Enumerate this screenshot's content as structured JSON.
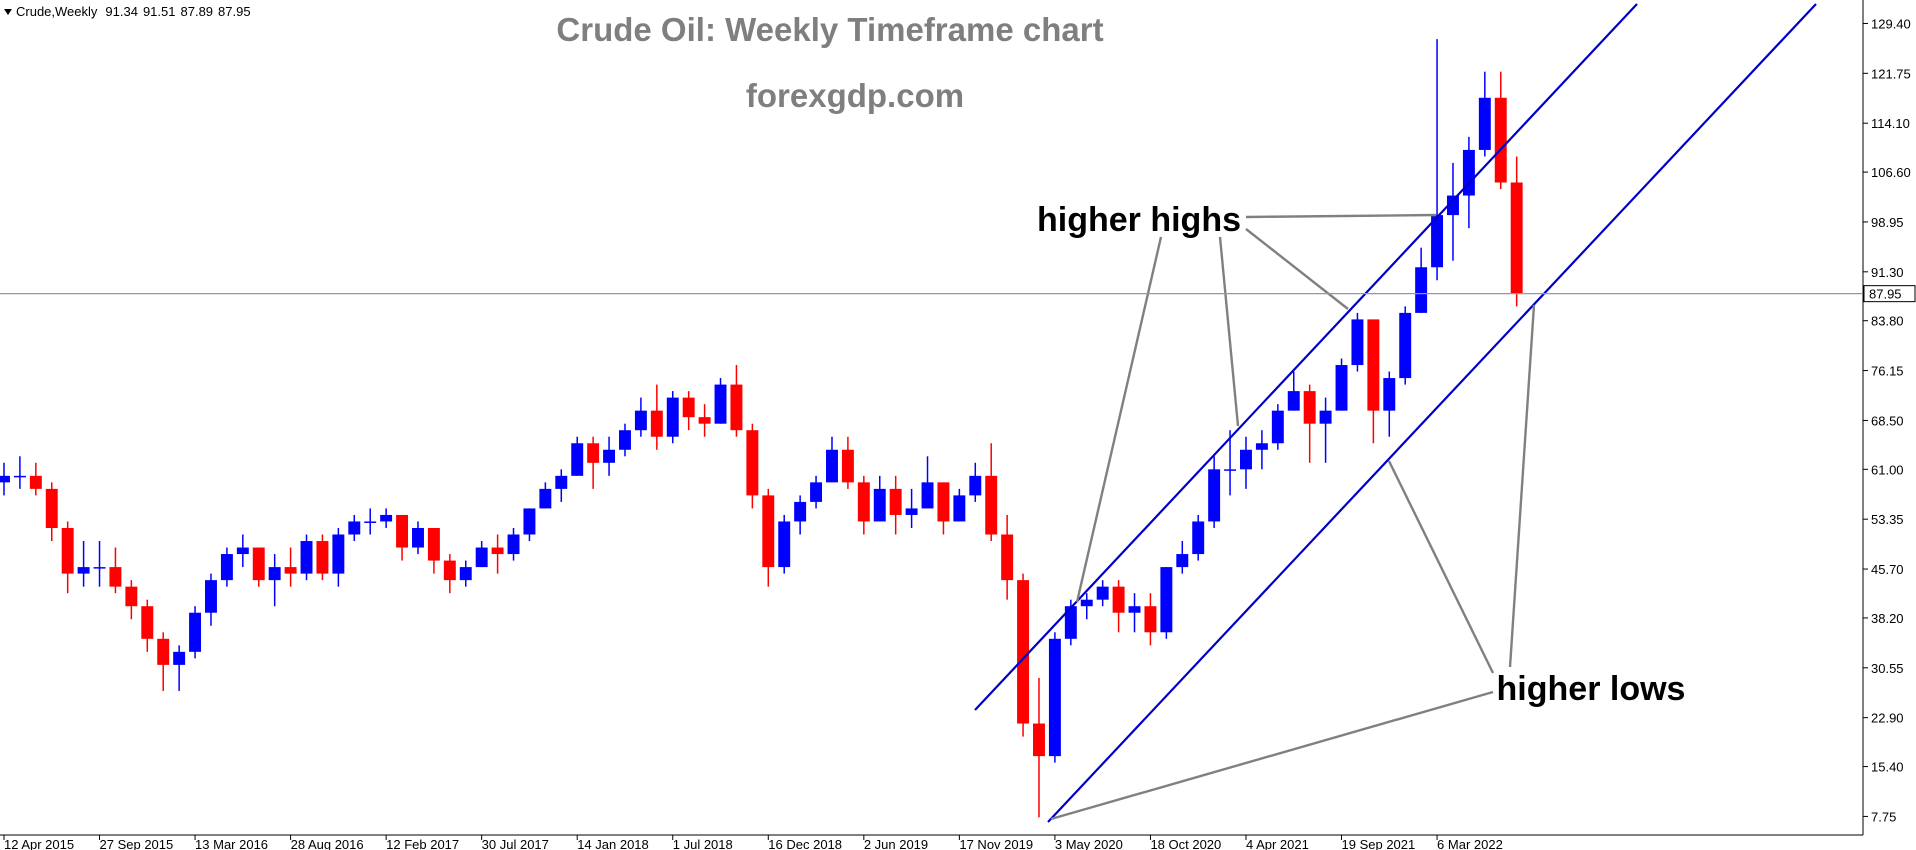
{
  "header": {
    "symbol": "Crude,Weekly",
    "open": 91.34,
    "high": 91.51,
    "low": 87.89,
    "close": 87.95
  },
  "chart_data": {
    "type": "candlestick",
    "title": "Crude Oil: Weekly Timeframe chart",
    "subtitle": "forexgdp.com",
    "annotations": [
      "higher highs",
      "higher lows"
    ],
    "up_color": "#0000ff",
    "down_color": "#ff0000",
    "current_price": 87.95,
    "xlim": [
      "5 Apr 2015",
      "24 Mar 2024"
    ],
    "xticks": [
      "12 Apr 2015",
      "27 Sep 2015",
      "13 Mar 2016",
      "28 Aug 2016",
      "12 Feb 2017",
      "30 Jul 2017",
      "14 Jan 2018",
      "1 Jul 2018",
      "16 Dec 2018",
      "2 Jun 2019",
      "17 Nov 2019",
      "3 May 2020",
      "18 Oct 2020",
      "4 Apr 2021",
      "19 Sep 2021",
      "6 Mar 2022"
    ],
    "ylim": [
      4.9,
      133.0
    ],
    "yticks": [
      7.75,
      {
        "value": 15.4,
        "label": "15.40"
      },
      {
        "value": 22.9,
        "label": "22.90"
      },
      30.55,
      {
        "value": 38.2,
        "label": "38.20"
      },
      {
        "value": 45.7,
        "label": "45.70"
      },
      53.35,
      {
        "value": 61,
        "label": "61.00"
      },
      {
        "value": 68.5,
        "label": "68.50"
      },
      76.15,
      {
        "value": 83.8,
        "label": "83.80"
      },
      {
        "value": 91.3,
        "label": "91.30"
      },
      98.95,
      {
        "value": 106.6,
        "label": "106.60"
      },
      {
        "value": 114.1,
        "label": "114.10"
      },
      121.75,
      {
        "value": 129.4,
        "label": "129.40"
      }
    ],
    "x": [
      "12 Apr 2015",
      "10 May 2015",
      "7 Jun 2015",
      "5 Jul 2015",
      "2 Aug 2015",
      "30 Aug 2015",
      "27 Sep 2015",
      "25 Oct 2015",
      "22 Nov 2015",
      "20 Dec 2015",
      "17 Jan 2016",
      "14 Feb 2016",
      "13 Mar 2016",
      "10 Apr 2016",
      "8 May 2016",
      "5 Jun 2016",
      "3 Jul 2016",
      "31 Jul 2016",
      "28 Aug 2016",
      "25 Sep 2016",
      "23 Oct 2016",
      "20 Nov 2016",
      "18 Dec 2016",
      "15 Jan 2017",
      "12 Feb 2017",
      "12 Mar 2017",
      "9 Apr 2017",
      "7 May 2017",
      "4 Jun 2017",
      "2 Jul 2017",
      "30 Jul 2017",
      "27 Aug 2017",
      "24 Sep 2017",
      "22 Oct 2017",
      "19 Nov 2017",
      "17 Dec 2017",
      "14 Jan 2018",
      "11 Feb 2018",
      "11 Mar 2018",
      "8 Apr 2018",
      "6 May 2018",
      "3 Jun 2018",
      "1 Jul 2018",
      "29 Jul 2018",
      "26 Aug 2018",
      "23 Sep 2018",
      "21 Oct 2018",
      "18 Nov 2018",
      "16 Dec 2018",
      "13 Jan 2019",
      "10 Feb 2019",
      "10 Mar 2019",
      "7 Apr 2019",
      "5 May 2019",
      "2 Jun 2019",
      "30 Jun 2019",
      "28 Jul 2019",
      "25 Aug 2019",
      "22 Sep 2019",
      "20 Oct 2019",
      "17 Nov 2019",
      "15 Dec 2019",
      "12 Jan 2020",
      "9 Feb 2020",
      "8 Mar 2020",
      "5 Apr 2020",
      "3 May 2020",
      "31 May 2020",
      "28 Jun 2020",
      "26 Jul 2020",
      "23 Aug 2020",
      "20 Sep 2020",
      "18 Oct 2020",
      "15 Nov 2020",
      "13 Dec 2020",
      "10 Jan 2021",
      "7 Feb 2021",
      "7 Mar 2021",
      "4 Apr 2021",
      "2 May 2021",
      "30 May 2021",
      "27 Jun 2021",
      "25 Jul 2021",
      "22 Aug 2021",
      "19 Sep 2021",
      "17 Oct 2021",
      "14 Nov 2021",
      "12 Dec 2021",
      "9 Jan 2022",
      "6 Feb 2022",
      "6 Mar 2022",
      "3 Apr 2022",
      "1 May 2022",
      "29 May 2022",
      "26 Jun 2022",
      "24 Jul 2022"
    ],
    "open": [
      59,
      60,
      60,
      58,
      52,
      45,
      46,
      46,
      43,
      40,
      35,
      31,
      33,
      39,
      44,
      48,
      49,
      44,
      46,
      45,
      50,
      45,
      51,
      53,
      53,
      54,
      49,
      52,
      47,
      44,
      46,
      49,
      48,
      51,
      55,
      58,
      60,
      65,
      62,
      64,
      67,
      70,
      66,
      72,
      69,
      68,
      74,
      67,
      57,
      46,
      53,
      56,
      59,
      64,
      59,
      53,
      58,
      54,
      55,
      59,
      53,
      57,
      60,
      51,
      44,
      22,
      17,
      35,
      40,
      41,
      43,
      39,
      40,
      36,
      46,
      48,
      53,
      61,
      61,
      64,
      65,
      70,
      73,
      68,
      70,
      77,
      84,
      70,
      75,
      85,
      92,
      100,
      103,
      110,
      118,
      105
    ],
    "high": [
      62,
      63,
      62,
      59,
      53,
      50,
      50,
      49,
      44,
      41,
      36,
      34,
      40,
      45,
      49,
      51,
      49,
      48,
      49,
      51,
      51,
      52,
      54,
      55,
      55,
      54,
      53,
      52,
      48,
      47,
      50,
      51,
      52,
      55,
      59,
      61,
      66,
      66,
      66,
      68,
      72,
      74,
      73,
      73,
      71,
      75,
      77,
      68,
      58,
      54,
      57,
      60,
      66,
      66,
      60,
      60,
      60,
      58,
      63,
      59,
      58,
      62,
      65,
      54,
      45,
      29,
      36,
      41,
      42,
      44,
      44,
      42,
      42,
      46,
      50,
      54,
      63,
      67,
      66,
      67,
      71,
      76,
      74,
      72,
      78,
      85,
      84,
      76,
      86,
      95,
      127,
      108,
      112,
      122,
      122,
      109
    ],
    "low": [
      57,
      58,
      57,
      50,
      42,
      43,
      43,
      42,
      38,
      33,
      27,
      27,
      32,
      37,
      43,
      46,
      43,
      40,
      43,
      44,
      44,
      43,
      50,
      51,
      52,
      47,
      48,
      45,
      42,
      43,
      46,
      45,
      47,
      50,
      55,
      56,
      60,
      58,
      60,
      63,
      66,
      64,
      65,
      67,
      66,
      68,
      66,
      55,
      43,
      45,
      51,
      55,
      59,
      58,
      51,
      53,
      51,
      52,
      55,
      51,
      53,
      56,
      50,
      41,
      20,
      7.6,
      16,
      34,
      38,
      40,
      36,
      36,
      34,
      35,
      45,
      47,
      52,
      57,
      58,
      61,
      64,
      70,
      62,
      62,
      70,
      76,
      65,
      66,
      74,
      85,
      90,
      93,
      98,
      109,
      104,
      86
    ],
    "close": [
      60,
      60,
      58,
      52,
      45,
      46,
      46,
      43,
      40,
      35,
      31,
      33,
      39,
      44,
      48,
      49,
      44,
      46,
      45,
      50,
      45,
      51,
      53,
      53,
      54,
      49,
      52,
      47,
      44,
      46,
      49,
      48,
      51,
      55,
      58,
      60,
      65,
      62,
      64,
      67,
      70,
      66,
      72,
      69,
      68,
      74,
      67,
      57,
      46,
      53,
      56,
      59,
      64,
      59,
      53,
      58,
      54,
      55,
      59,
      53,
      57,
      60,
      51,
      44,
      22,
      17,
      35,
      40,
      41,
      43,
      39,
      40,
      36,
      46,
      48,
      53,
      61,
      61,
      64,
      65,
      70,
      73,
      68,
      70,
      77,
      84,
      70,
      75,
      85,
      92,
      100,
      103,
      110,
      118,
      105,
      87.95
    ]
  }
}
